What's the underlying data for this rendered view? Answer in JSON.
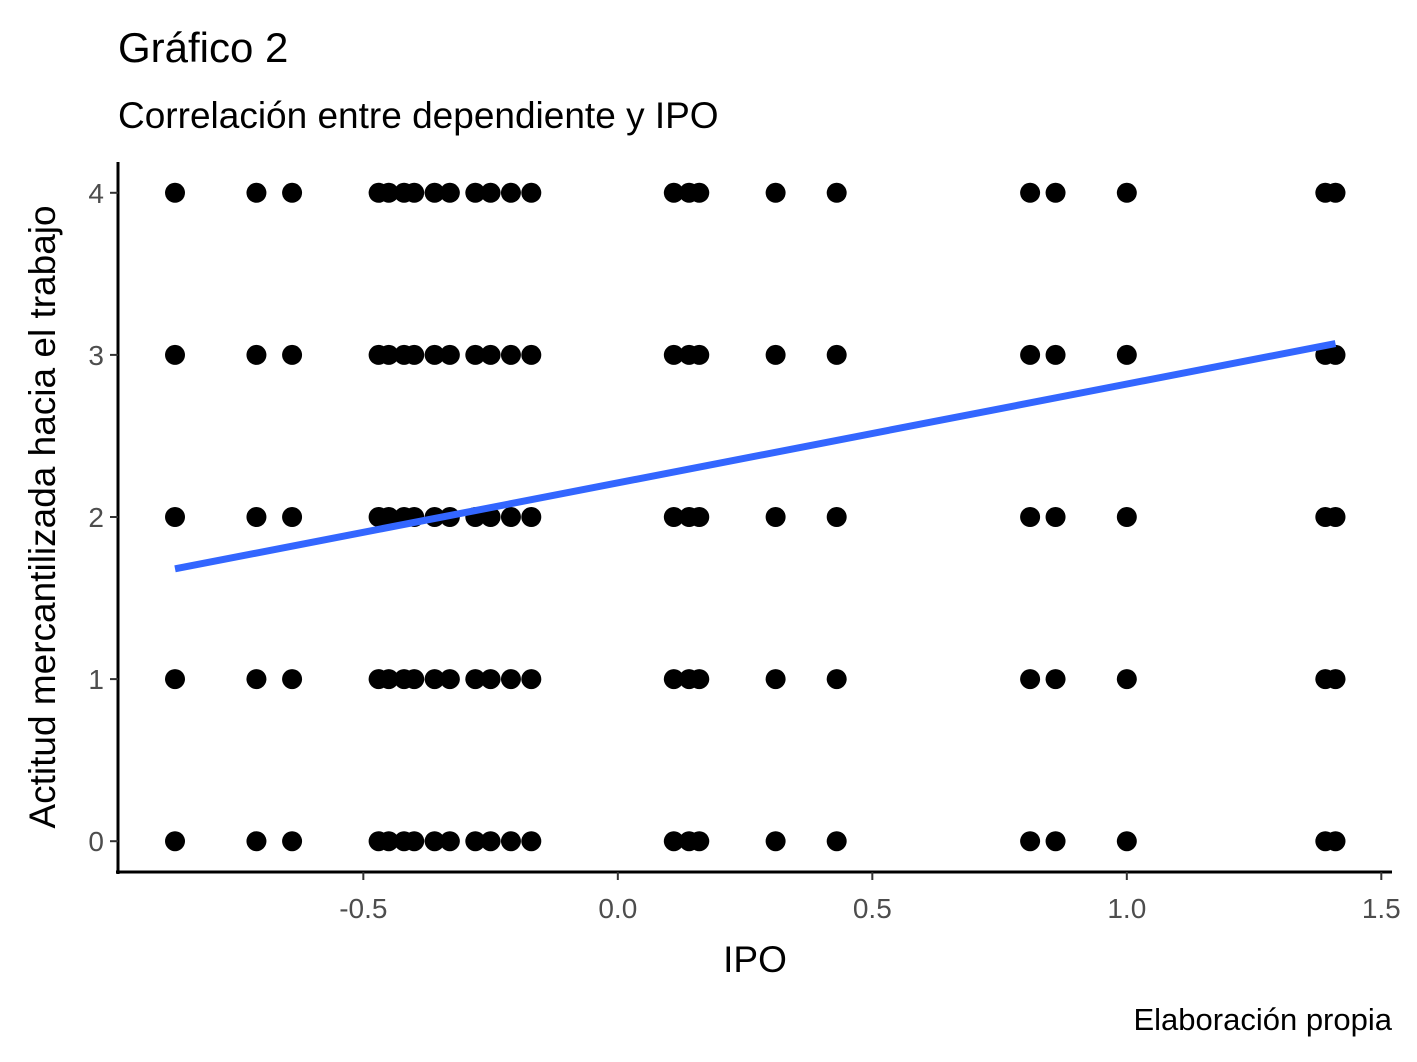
{
  "chart_data": {
    "type": "scatter",
    "title": "Gráfico 2",
    "subtitle": "Correlación entre dependiente y IPO",
    "xlabel": "IPO",
    "ylabel": "Actitud mercantilizada hacia el trabajo",
    "caption": "Elaboración propia",
    "color": "#000000",
    "x": [
      -0.87,
      -0.71,
      -0.64,
      -0.47,
      -0.45,
      -0.42,
      -0.4,
      -0.36,
      -0.33,
      -0.28,
      -0.25,
      -0.21,
      -0.17,
      0.11,
      0.14,
      0.16,
      0.31,
      0.43,
      0.81,
      0.86,
      1.0,
      1.39,
      1.41,
      -0.87,
      -0.71,
      -0.64,
      -0.47,
      -0.45,
      -0.42,
      -0.4,
      -0.36,
      -0.33,
      -0.28,
      -0.25,
      -0.21,
      -0.17,
      0.11,
      0.14,
      0.16,
      0.31,
      0.43,
      0.81,
      0.86,
      1.0,
      1.39,
      1.41,
      -0.87,
      -0.71,
      -0.64,
      -0.47,
      -0.45,
      -0.42,
      -0.4,
      -0.36,
      -0.33,
      -0.28,
      -0.25,
      -0.21,
      -0.17,
      0.11,
      0.14,
      0.16,
      0.31,
      0.43,
      0.81,
      0.86,
      1.0,
      1.39,
      1.41,
      -0.87,
      -0.71,
      -0.64,
      -0.47,
      -0.45,
      -0.42,
      -0.4,
      -0.36,
      -0.33,
      -0.28,
      -0.25,
      -0.21,
      -0.17,
      0.11,
      0.14,
      0.16,
      0.31,
      0.43,
      0.81,
      0.86,
      1.0,
      1.39,
      1.41,
      -0.87,
      -0.71,
      -0.64,
      -0.47,
      -0.45,
      -0.42,
      -0.4,
      -0.36,
      -0.33,
      -0.28,
      -0.25,
      -0.21,
      -0.17,
      0.11,
      0.14,
      0.16,
      0.31,
      0.43,
      0.81,
      0.86,
      1.0,
      1.39,
      1.41
    ],
    "y": [
      4,
      4,
      4,
      4,
      4,
      4,
      4,
      4,
      4,
      4,
      4,
      4,
      4,
      4,
      4,
      4,
      4,
      4,
      4,
      4,
      4,
      4,
      4,
      3,
      3,
      3,
      3,
      3,
      3,
      3,
      3,
      3,
      3,
      3,
      3,
      3,
      3,
      3,
      3,
      3,
      3,
      3,
      3,
      3,
      3,
      3,
      2,
      2,
      2,
      2,
      2,
      2,
      2,
      2,
      2,
      2,
      2,
      2,
      2,
      2,
      2,
      2,
      2,
      2,
      2,
      2,
      2,
      2,
      2,
      1,
      1,
      1,
      1,
      1,
      1,
      1,
      1,
      1,
      1,
      1,
      1,
      1,
      1,
      1,
      1,
      1,
      1,
      1,
      1,
      1,
      1,
      1,
      0,
      0,
      0,
      0,
      0,
      0,
      0,
      0,
      0,
      0,
      0,
      0,
      0,
      0,
      0,
      0,
      0,
      0,
      0,
      0,
      0,
      0,
      0
    ],
    "trend_line": {
      "x": [
        -0.87,
        1.41
      ],
      "y": [
        1.68,
        3.07
      ],
      "color": "#3366ff"
    },
    "xlim": [
      -0.982,
      1.521
    ],
    "ylim": [
      -0.19,
      4.19
    ],
    "xticks": [
      -0.5,
      {
        "value": 0,
        "label": "0.0"
      },
      0.5,
      {
        "value": 1,
        "label": "1.0"
      },
      1.5
    ],
    "yticks": [
      0,
      1,
      2,
      3,
      4
    ],
    "grid": false
  }
}
